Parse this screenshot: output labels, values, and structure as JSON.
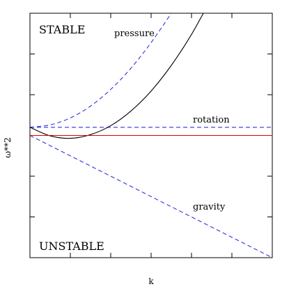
{
  "chart_data": {
    "type": "line",
    "title": "",
    "xlabel": "k",
    "ylabel": "ω**2",
    "xlim": [
      0,
      6
    ],
    "ylim": [
      -3,
      3
    ],
    "grid": false,
    "x_ticks": [
      0,
      1,
      2,
      3,
      4,
      5,
      6
    ],
    "y_ticks": [
      -3,
      -2,
      -1,
      0,
      1,
      2,
      3
    ],
    "region_labels": {
      "top": "STABLE",
      "bottom": "UNSTABLE"
    },
    "series": [
      {
        "name": "pressure",
        "color": "#3333dd",
        "dash": "dashed",
        "x": [
          0,
          0.5,
          1,
          1.5,
          2,
          2.5,
          3,
          3.5
        ],
        "y": [
          0.2,
          0.26,
          0.43,
          0.72,
          1.13,
          1.65,
          2.28,
          3.0
        ]
      },
      {
        "name": "rotation",
        "color": "#3333dd",
        "dash": "dashed",
        "x": [
          0,
          6
        ],
        "y": [
          0.2,
          0.2
        ]
      },
      {
        "name": "gravity",
        "color": "#3333dd",
        "dash": "dashed",
        "x": [
          0,
          6
        ],
        "y": [
          0,
          -3
        ]
      },
      {
        "name": "",
        "color": "#000000",
        "dash": "solid",
        "x": [
          0,
          0.5,
          1,
          1.5,
          2,
          2.5,
          3,
          3.5,
          4,
          4.5
        ],
        "y": [
          0.2,
          -0.01,
          -0.07,
          0.02,
          0.24,
          0.6,
          1.09,
          1.72,
          2.48,
          3.38
        ]
      },
      {
        "name": "",
        "color": "#dd0000",
        "dash": "solid",
        "x": [
          0,
          6
        ],
        "y": [
          0,
          0
        ]
      }
    ]
  }
}
